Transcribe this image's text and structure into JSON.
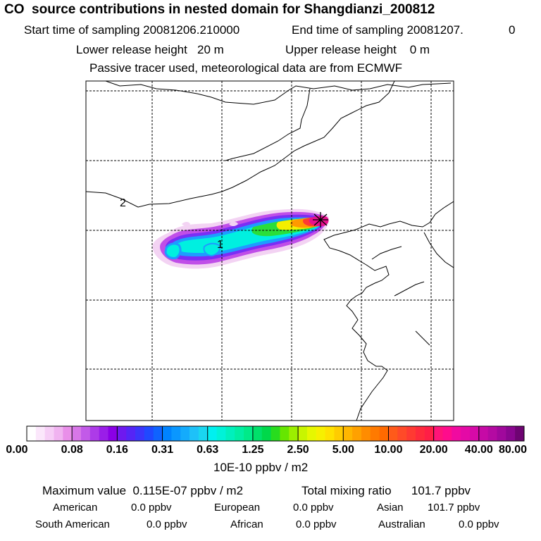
{
  "header": {
    "title": "CO  source contributions in nested domain for Shangdianzi_200812",
    "start_label": "Start time of sampling 20081206.210000",
    "end_label": "End time of sampling 20081207.",
    "end_suffix": "0",
    "lower_release": "Lower release height   20 m",
    "upper_release": "Upper release height    0 m",
    "tracer_note": "Passive tracer used, meteorological data are from ECMWF"
  },
  "map": {
    "contour_labels": [
      "2",
      "1"
    ],
    "receptor_marker": "asterisk-icon"
  },
  "chart_data": {
    "type": "heatmap",
    "colorbar_ticks": [
      "0.00",
      "0.08",
      "0.16",
      "0.31",
      "0.63",
      "1.25",
      "2.50",
      "5.00",
      "10.00",
      "20.00",
      "40.00",
      "80.00"
    ],
    "unit": "10E-10 ppbv / m2",
    "colors": [
      [
        "#ffffff",
        "#fbe7fb",
        "#f6cef6",
        "#f0b3f0",
        "#e98fe9"
      ],
      [
        "#d877e8",
        "#c25ae8",
        "#ad3be8",
        "#9a1ee8",
        "#8a00e6"
      ],
      [
        "#6e19ef",
        "#5525f6",
        "#3b35fb",
        "#2049ff",
        "#0f63ff"
      ],
      [
        "#0083ff",
        "#0a97ff",
        "#14abfc",
        "#1ec1f8",
        "#1ad6f0"
      ],
      [
        "#00f0f0",
        "#00f2d8",
        "#00f0bd",
        "#00eea3",
        "#00ea88"
      ],
      [
        "#00e06a",
        "#00d84a",
        "#28dc1e",
        "#66e600",
        "#9cef00"
      ],
      [
        "#c8f500",
        "#e6f700",
        "#f7f000",
        "#ffe100",
        "#ffcc00"
      ],
      [
        "#ffb600",
        "#ffa100",
        "#ff8c00",
        "#ff7a00",
        "#ff6a00"
      ],
      [
        "#ff5a1a",
        "#ff4a28",
        "#ff3a32",
        "#ff2a3c",
        "#ff1e46"
      ],
      [
        "#ff1478",
        "#ff0c8c",
        "#f00aa0",
        "#e40aa6",
        "#d60aa8"
      ],
      [
        "#c60aa6",
        "#b40aa2",
        "#a0089c",
        "#8a0690",
        "#6e0472"
      ]
    ]
  },
  "summary": {
    "max_label": "Maximum value  0.115E-07 ppbv / m2",
    "total_label": "Total mixing ratio      101.7 ppbv",
    "regions": [
      {
        "name": "American",
        "value": "0.0 ppbv"
      },
      {
        "name": "European",
        "value": "0.0 ppbv"
      },
      {
        "name": "Asian",
        "value": "101.7 ppbv"
      },
      {
        "name": "South American",
        "value": "0.0 ppbv"
      },
      {
        "name": "African",
        "value": "0.0 ppbv"
      },
      {
        "name": "Australian",
        "value": "0.0 ppbv"
      }
    ]
  }
}
